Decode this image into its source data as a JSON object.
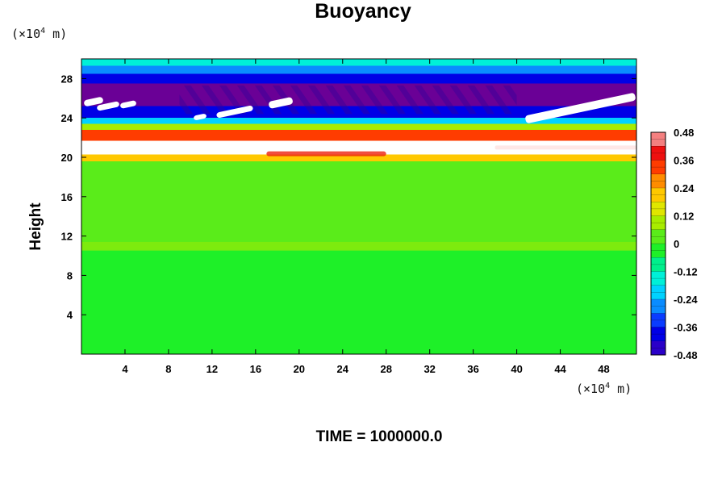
{
  "chart_data": {
    "type": "heatmap",
    "title": "Buoyancy",
    "ylabel": "Height",
    "xlabel": "",
    "x_unit": {
      "prefix": "(×10",
      "exp": "4",
      "suffix": " m)"
    },
    "y_unit": {
      "prefix": "(×10",
      "exp": "4",
      "suffix": " m)"
    },
    "xlim": [
      0,
      51
    ],
    "ylim": [
      0,
      30
    ],
    "x_ticks": [
      "4",
      "8",
      "12",
      "16",
      "20",
      "24",
      "28",
      "32",
      "36",
      "40",
      "44",
      "48"
    ],
    "y_ticks": [
      "4",
      "8",
      "12",
      "16",
      "20",
      "24",
      "28"
    ],
    "colorbar": {
      "min": -0.48,
      "max": 0.48,
      "ticks": [
        "0.48",
        "0.36",
        "0.24",
        "0.12",
        "0",
        "-0.12",
        "-0.24",
        "-0.36",
        "-0.48"
      ]
    },
    "field_bands": [
      {
        "y": [
          0,
          10.5
        ],
        "value": 0.0
      },
      {
        "y": [
          10.5,
          11.5
        ],
        "value": 0.06
      },
      {
        "y": [
          11.5,
          19.6
        ],
        "value": 0.02
      },
      {
        "y": [
          19.6,
          20.3
        ],
        "value": 0.24
      },
      {
        "y": [
          20.3,
          21.7
        ],
        "value": 0.5
      },
      {
        "y": [
          21.7,
          22.8
        ],
        "value": 0.36
      },
      {
        "y": [
          22.8,
          23.4
        ],
        "value": 0.1
      },
      {
        "y": [
          23.4,
          24.0
        ],
        "value": -0.18
      },
      {
        "y": [
          24.0,
          25.2
        ],
        "value": -0.36
      },
      {
        "y": [
          25.2,
          27.5
        ],
        "value": -0.48
      },
      {
        "y": [
          27.5,
          28.5
        ],
        "value": -0.36
      },
      {
        "y": [
          28.5,
          29.3
        ],
        "value": -0.24
      },
      {
        "y": [
          29.3,
          30.0
        ],
        "value": -0.12
      }
    ],
    "footer": "TIME = 1000000.0"
  }
}
